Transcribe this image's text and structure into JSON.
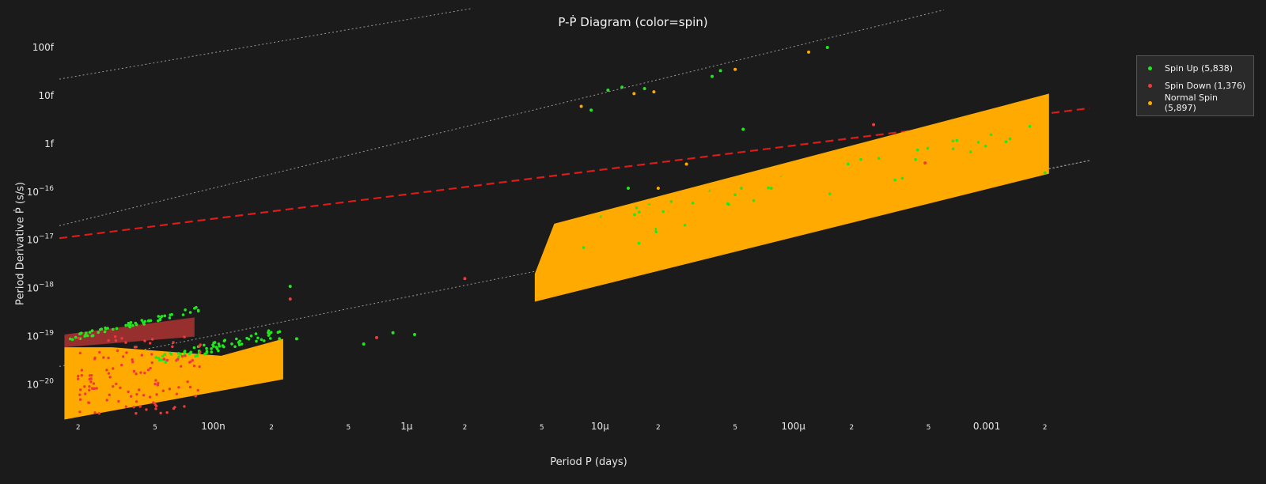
{
  "title": "P-Ṗ Diagram (color=spin)",
  "legend": {
    "items": [
      {
        "label": "Spin Up (5,838)",
        "color": "#22e61e"
      },
      {
        "label": "Spin Down (1,376)",
        "color": "#f03a3a"
      },
      {
        "label": "Normal Spin (5,897)",
        "color": "#ffaa00"
      }
    ]
  },
  "chart_data": {
    "type": "scatter",
    "title": "P-Ṗ Diagram (color=spin)",
    "xlabel": "Period P (days)",
    "ylabel": "Period Derivative Ṗ (s/s)",
    "x_scale": "log",
    "y_scale": "log",
    "xlim": [
      1.6e-08,
      0.0035
    ],
    "ylim": [
      1.6e-21,
      1e-13
    ],
    "x_ticks": [
      {
        "value": 2e-08,
        "label": "2"
      },
      {
        "value": 5e-08,
        "label": "5"
      },
      {
        "value": 1e-07,
        "label": "100n"
      },
      {
        "value": 2e-07,
        "label": "2"
      },
      {
        "value": 5e-07,
        "label": "5"
      },
      {
        "value": 1e-06,
        "label": "1μ"
      },
      {
        "value": 2e-06,
        "label": "2"
      },
      {
        "value": 5e-06,
        "label": "5"
      },
      {
        "value": 1e-05,
        "label": "10μ"
      },
      {
        "value": 2e-05,
        "label": "2"
      },
      {
        "value": 5e-05,
        "label": "5"
      },
      {
        "value": 0.0001,
        "label": "100μ"
      },
      {
        "value": 0.0002,
        "label": "2"
      },
      {
        "value": 0.0005,
        "label": "5"
      },
      {
        "value": 0.001,
        "label": "0.001"
      },
      {
        "value": 0.002,
        "label": "2"
      }
    ],
    "y_ticks": [
      {
        "value": 1e-20,
        "label": "10",
        "exp": "−20"
      },
      {
        "value": 1e-19,
        "label": "10",
        "exp": "−19"
      },
      {
        "value": 1e-18,
        "label": "10",
        "exp": "−18"
      },
      {
        "value": 1e-17,
        "label": "10",
        "exp": "−17"
      },
      {
        "value": 1e-16,
        "label": "10",
        "exp": "−16"
      },
      {
        "value": 1e-15,
        "label": "1f"
      },
      {
        "value": 1e-14,
        "label": "10f"
      },
      {
        "value": 1e-13,
        "label": "100f"
      }
    ],
    "grid": false,
    "legend_position": "top-right",
    "series": [
      {
        "name": "Spin Up (5,838)",
        "color": "#22e61e",
        "count": 5838,
        "points": [
          [
            1.1e-05,
            1.3e-14
          ],
          [
            1.3e-05,
            1.5e-14
          ],
          [
            1.7e-05,
            1.4e-14
          ],
          [
            3.8e-05,
            2.5e-14
          ],
          [
            4.2e-05,
            3.3e-14
          ],
          [
            0.00015,
            1e-13
          ],
          [
            9e-06,
            5e-15
          ],
          [
            5.5e-05,
            2e-15
          ],
          [
            1.4e-05,
            1.2e-16
          ],
          [
            8.5e-07,
            1.2e-19
          ],
          [
            6e-07,
            7e-20
          ],
          [
            1.1e-06,
            1.1e-19
          ],
          [
            2.5e-07,
            1.1e-18
          ],
          [
            2.2e-07,
            9e-20
          ],
          [
            2.7e-07,
            9e-20
          ],
          [
            0.002,
            2.5e-16
          ]
        ]
      },
      {
        "name": "Spin Down (1,376)",
        "color": "#f03a3a",
        "count": 1376,
        "points": [
          [
            2.5e-07,
            6e-19
          ],
          [
            2e-06,
            1.6e-18
          ],
          [
            7e-07,
            9.5e-20
          ],
          [
            0.00026,
            2.5e-15
          ],
          [
            0.00048,
            4e-16
          ]
        ]
      },
      {
        "name": "Normal Spin (5,897)",
        "color": "#ffaa00",
        "count": 5897,
        "points": [
          [
            8e-06,
            6e-15
          ],
          [
            1.5e-05,
            1.1e-14
          ],
          [
            1.9e-05,
            1.2e-14
          ],
          [
            5e-05,
            3.5e-14
          ],
          [
            0.00012,
            8e-14
          ],
          [
            2e-05,
            1.2e-16
          ],
          [
            2.8e-05,
            3.8e-16
          ]
        ]
      }
    ],
    "annotations": {
      "dotted_reference_lines": 4,
      "dashed_red_line": true
    }
  }
}
